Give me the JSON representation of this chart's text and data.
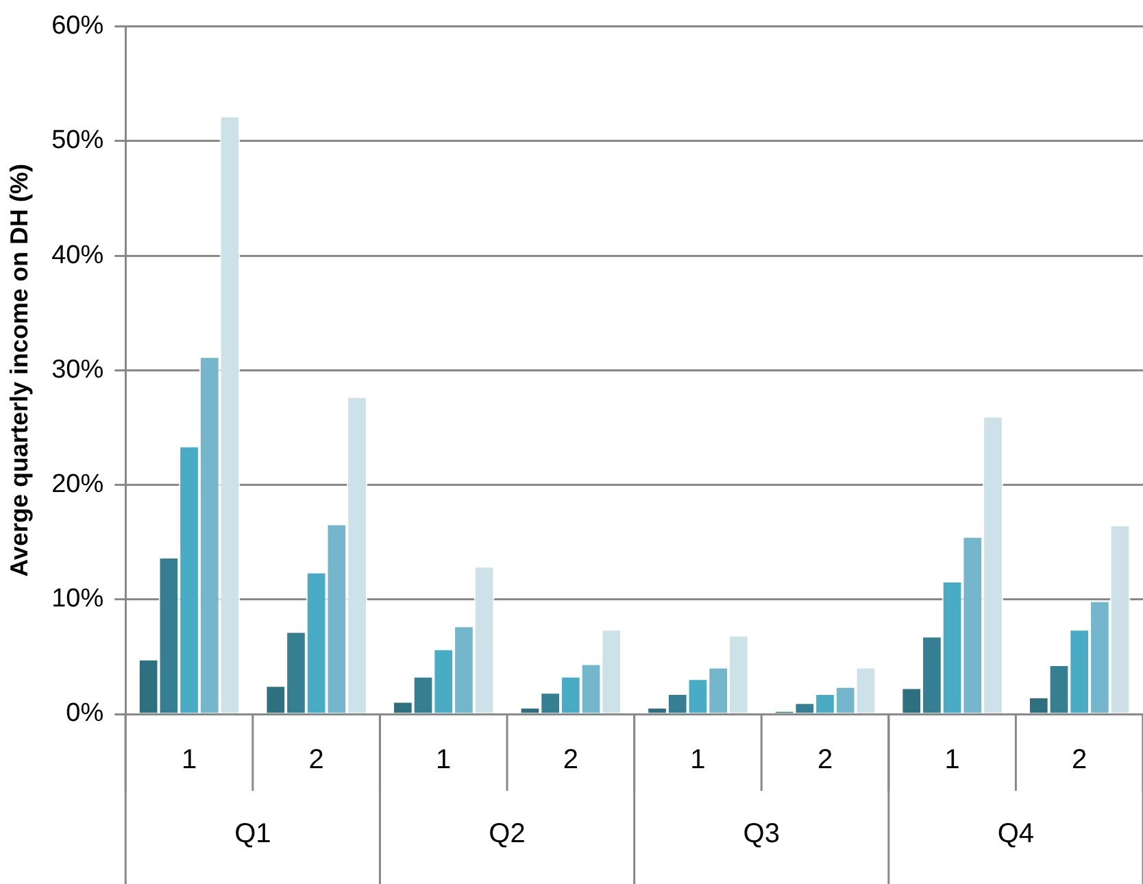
{
  "chart_data": {
    "type": "bar",
    "ylabel": "Averge quarterly income on DH (%)",
    "categories": [
      "1",
      "2",
      "1",
      "2",
      "1",
      "2",
      "1",
      "2"
    ],
    "annotations": [
      "Q1",
      "Q2",
      "Q3",
      "Q4"
    ],
    "series": [
      {
        "color": "#2e6f80",
        "values": [
          4.8,
          2.5,
          1.1,
          0.6,
          0.6,
          0.3,
          2.3,
          1.5
        ]
      },
      {
        "color": "#367f93",
        "values": [
          13.7,
          7.2,
          3.3,
          1.9,
          1.8,
          1.0,
          6.8,
          4.3
        ]
      },
      {
        "color": "#4aabc5",
        "values": [
          23.4,
          12.4,
          5.7,
          3.3,
          3.1,
          1.8,
          11.6,
          7.4
        ]
      },
      {
        "color": "#74b6cc",
        "values": [
          31.2,
          16.6,
          7.7,
          4.4,
          4.1,
          2.4,
          15.5,
          9.9
        ]
      },
      {
        "color": "#cde1e8",
        "values": [
          52.2,
          27.7,
          12.9,
          7.4,
          6.9,
          4.1,
          26.0,
          16.5
        ]
      }
    ],
    "ylim": [
      0,
      60
    ],
    "yticks": [
      {
        "value": 0,
        "label": "0%"
      },
      {
        "value": 10,
        "label": "10%"
      },
      {
        "value": 20,
        "label": "20%"
      },
      {
        "value": 30,
        "label": "30%"
      },
      {
        "value": 40,
        "label": "40%"
      },
      {
        "value": 50,
        "label": "50%"
      },
      {
        "value": 60,
        "label": "60%"
      }
    ],
    "grid": "y",
    "legend": false
  }
}
